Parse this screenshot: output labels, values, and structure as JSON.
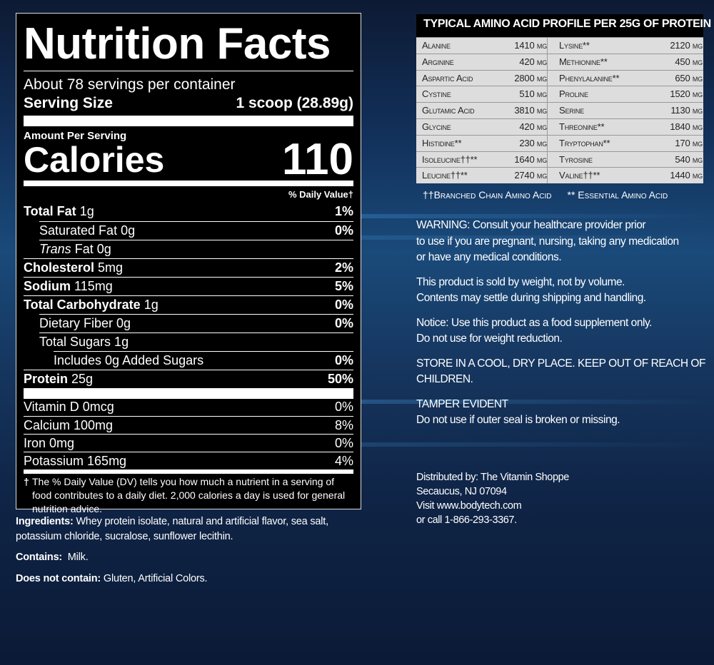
{
  "nutrition": {
    "title": "Nutrition Facts",
    "servings": "About 78 servings per container",
    "serving_size_label": "Serving Size",
    "serving_size_value": "1 scoop (28.89g)",
    "amount_per_serving": "Amount Per Serving",
    "calories_label": "Calories",
    "calories_value": "110",
    "dv_header": "% Daily Value†",
    "nutrients": [
      {
        "name": "Total Fat",
        "amount": "1g",
        "dv": "1%"
      },
      {
        "label": "Saturated Fat 0g",
        "dv": "0%"
      },
      {
        "italic": "Trans",
        "label": "Fat 0g"
      },
      {
        "name": "Cholesterol",
        "amount": "5mg",
        "dv": "2%"
      },
      {
        "name": "Sodium",
        "amount": "115mg",
        "dv": "5%"
      },
      {
        "name": "Total Carbohydrate",
        "amount": "1g",
        "dv": "0%"
      },
      {
        "label": "Dietary Fiber 0g",
        "dv": "0%"
      },
      {
        "label": "Total Sugars 1g"
      },
      {
        "label": "Includes 0g Added Sugars",
        "dv": "0%"
      },
      {
        "name": "Protein",
        "amount": "25g",
        "dv": "50%"
      }
    ],
    "vitamins": [
      {
        "label": "Vitamin D 0mcg",
        "dv": "0%"
      },
      {
        "label": "Calcium 100mg",
        "dv": "8%"
      },
      {
        "label": "Iron 0mg",
        "dv": "0%"
      },
      {
        "label": "Potassium 165mg",
        "dv": "4%"
      }
    ],
    "footnote_mark": "†",
    "footnote": "The % Daily Value (DV) tells you how much a nutrient in a serving of food contributes to a daily diet. 2,000 calories a day is used for general nutrition advice."
  },
  "ingredients": {
    "label": "Ingredients:",
    "text": "Whey protein isolate, natural and artificial flavor, sea salt, potassium chloride, sucralose, sunflower lecithin.",
    "contains_label": "Contains:",
    "contains": "Milk.",
    "not_contain_label": "Does not contain:",
    "not_contain": "Gluten, Artificial Colors."
  },
  "amino": {
    "title": "TYPICAL AMINO ACID PROFILE PER 25G OF PROTEIN",
    "rows": [
      [
        "Alanine",
        "1410 mg",
        "Lysine**",
        "2120 mg"
      ],
      [
        "Arginine",
        "420 mg",
        "Methionine**",
        "450 mg"
      ],
      [
        "Aspartic Acid",
        "2800 mg",
        "Phenylalanine**",
        "650 mg"
      ],
      [
        "Cystine",
        "510 mg",
        "Proline",
        "1520 mg"
      ],
      [
        "Glutamic Acid",
        "3810 mg",
        "Serine",
        "1130 mg"
      ],
      [
        "Glycine",
        "420 mg",
        "Threonine**",
        "1840 mg"
      ],
      [
        "Histidine**",
        "230 mg",
        "Tryptophan**",
        "170 mg"
      ],
      [
        "Isoleucine††**",
        "1640 mg",
        "Tyrosine",
        "540 mg"
      ],
      [
        "Leucine††**",
        "2740 mg",
        "Valine††**",
        "1440 mg"
      ]
    ],
    "legend": [
      "††Branched Chain Amino Acid",
      "** Essential Amino Acid"
    ]
  },
  "notes": {
    "warning": [
      "WARNING: Consult your healthcare provider prior",
      "to use if you are pregnant, nursing, taking any medication",
      "or have any medical conditions."
    ],
    "weight": [
      "This product is sold by weight, not by volume.",
      "Contents may settle during shipping and handling."
    ],
    "notice": [
      "Notice: Use this product as a food supplement only.",
      "Do not use for weight reduction."
    ],
    "store": [
      "STORE IN A COOL, DRY PLACE. KEEP OUT OF REACH OF",
      "CHILDREN."
    ],
    "tamper": [
      "TAMPER EVIDENT",
      "Do not use if outer seal is broken or missing."
    ],
    "distributed": [
      "Distributed by: The Vitamin Shoppe",
      "Secaucus, NJ 07094",
      "Visit www.bodytech.com",
      "or call 1-866-293-3367."
    ]
  }
}
